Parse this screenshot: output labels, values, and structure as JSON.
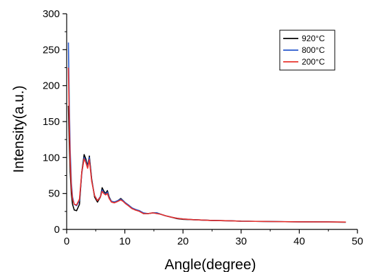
{
  "chart_data": {
    "type": "line",
    "xlabel": "Angle(degree)",
    "ylabel": "Intensity(a.u.)",
    "xlim": [
      0,
      50
    ],
    "ylim": [
      0,
      300
    ],
    "xticks": [
      0,
      10,
      20,
      30,
      40,
      50
    ],
    "yticks": [
      0,
      50,
      100,
      150,
      200,
      250,
      300
    ],
    "grid": false,
    "legend_position": "top-right",
    "series": [
      {
        "name": "920°C",
        "color": "#000000",
        "x": [
          0.3,
          0.45,
          0.6,
          0.8,
          1.0,
          1.3,
          1.7,
          2.2,
          2.6,
          3.0,
          3.3,
          3.6,
          3.9,
          4.3,
          4.8,
          5.3,
          5.8,
          6.1,
          6.4,
          6.7,
          7.0,
          7.3,
          7.7,
          8.2,
          8.8,
          9.3,
          9.7,
          10.1,
          10.6,
          11.2,
          11.8,
          12.5,
          13.2,
          14.0,
          14.8,
          15.5,
          16.2,
          17.0,
          18.0,
          19.0,
          20.0,
          22.0,
          25.0,
          28.0,
          30.0,
          35.0,
          40.0,
          45.0,
          48.0
        ],
        "y": [
          172,
          120,
          80,
          50,
          35,
          27,
          26,
          35,
          80,
          104,
          98,
          88,
          102,
          70,
          45,
          38,
          45,
          58,
          53,
          50,
          54,
          45,
          39,
          38,
          40,
          43,
          40,
          37,
          34,
          30,
          27,
          26,
          22,
          22,
          23,
          23,
          21,
          19,
          17,
          15,
          14,
          13.5,
          12.5,
          12,
          11.5,
          11,
          10.5,
          10.3,
          10.1
        ]
      },
      {
        "name": "800°C",
        "color": "#2255cc",
        "x": [
          0.3,
          0.45,
          0.6,
          0.8,
          1.0,
          1.3,
          1.7,
          2.2,
          2.6,
          3.0,
          3.3,
          3.6,
          3.9,
          4.3,
          4.8,
          5.3,
          5.8,
          6.1,
          6.4,
          6.7,
          7.0,
          7.3,
          7.7,
          8.2,
          8.8,
          9.3,
          9.7,
          10.1,
          10.6,
          11.2,
          11.8,
          12.5,
          13.2,
          14.0,
          14.8,
          15.5,
          16.2,
          17.0,
          18.0,
          19.0,
          20.0,
          22.0,
          25.0,
          28.0,
          30.0,
          35.0,
          40.0,
          45.0,
          48.0
        ],
        "y": [
          260,
          175,
          110,
          65,
          45,
          35,
          33,
          40,
          78,
          100,
          95,
          86,
          100,
          68,
          47,
          40,
          46,
          55,
          51,
          49,
          52,
          44,
          39,
          38,
          40,
          42,
          40,
          37,
          34,
          30,
          28,
          26,
          23,
          22,
          23,
          23,
          21,
          19,
          17,
          15.5,
          14.5,
          13.5,
          12.5,
          12,
          11.5,
          11,
          10.6,
          10.4,
          10.2
        ]
      },
      {
        "name": "200°C",
        "color": "#e8302a",
        "x": [
          0.3,
          0.45,
          0.6,
          0.8,
          1.0,
          1.3,
          1.7,
          2.2,
          2.6,
          3.0,
          3.3,
          3.6,
          3.9,
          4.3,
          4.8,
          5.3,
          5.8,
          6.1,
          6.4,
          6.7,
          7.0,
          7.3,
          7.7,
          8.2,
          8.8,
          9.3,
          9.7,
          10.1,
          10.6,
          11.2,
          11.8,
          12.5,
          13.2,
          14.0,
          14.8,
          15.5,
          16.2,
          17.0,
          18.0,
          19.0,
          20.0,
          22.0,
          25.0,
          28.0,
          30.0,
          35.0,
          40.0,
          45.0,
          48.0
        ],
        "y": [
          225,
          150,
          95,
          58,
          42,
          35,
          34,
          42,
          80,
          98,
          93,
          85,
          97,
          67,
          47,
          40,
          45,
          53,
          50,
          48,
          50,
          43,
          38,
          37,
          39,
          41,
          39,
          36,
          33,
          29,
          27,
          25,
          22,
          22,
          23,
          22,
          21,
          19,
          17,
          15.5,
          14.5,
          13.5,
          12.5,
          12,
          11.5,
          11,
          10.6,
          10.4,
          10.2
        ]
      }
    ]
  }
}
